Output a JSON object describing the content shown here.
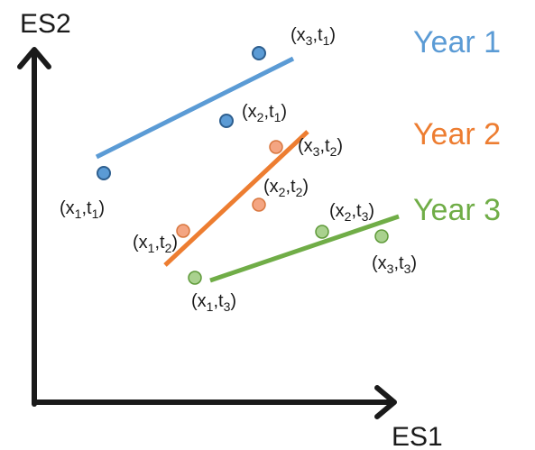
{
  "axes": {
    "x_label": "ES1",
    "y_label": "ES2"
  },
  "colors": {
    "axis": "#1a1a1a",
    "year1_line": "#5b9bd5",
    "year1_point_fill": "#5b9bd5",
    "year1_point_stroke": "#2e5f8f",
    "year2_line": "#ed7d31",
    "year2_point_fill": "#f4a582",
    "year2_point_stroke": "#d9773f",
    "year3_line": "#70ad47",
    "year3_point_fill": "#a9d18e",
    "year3_point_stroke": "#5f9a3a"
  },
  "years": [
    {
      "name": "Year 1",
      "points": [
        {
          "label": "(x1,t1)",
          "x": "x",
          "x_sub": "1",
          "t": "t",
          "t_sub": "1"
        },
        {
          "label": "(x2,t1)",
          "x": "x",
          "x_sub": "2",
          "t": "t",
          "t_sub": "1"
        },
        {
          "label": "(x3,t1)",
          "x": "x",
          "x_sub": "3",
          "t": "t",
          "t_sub": "1"
        }
      ]
    },
    {
      "name": "Year 2",
      "points": [
        {
          "label": "(x1,t2)",
          "x": "x",
          "x_sub": "1",
          "t": "t",
          "t_sub": "2"
        },
        {
          "label": "(x2,t2)",
          "x": "x",
          "x_sub": "2",
          "t": "t",
          "t_sub": "2"
        },
        {
          "label": "(x3,t2)",
          "x": "x",
          "x_sub": "3",
          "t": "t",
          "t_sub": "2"
        }
      ]
    },
    {
      "name": "Year 3",
      "points": [
        {
          "label": "(x1,t3)",
          "x": "x",
          "x_sub": "1",
          "t": "t",
          "t_sub": "3"
        },
        {
          "label": "(x2,t3)",
          "x": "x",
          "x_sub": "2",
          "t": "t",
          "t_sub": "3"
        },
        {
          "label": "(x3,t3)",
          "x": "x",
          "x_sub": "3",
          "t": "t",
          "t_sub": "3"
        }
      ]
    }
  ]
}
